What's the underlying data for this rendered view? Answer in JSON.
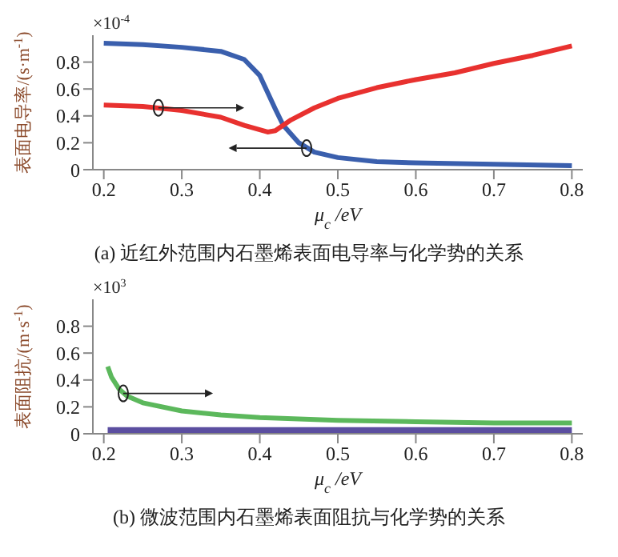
{
  "chart_data": [
    {
      "type": "line",
      "title": "(a) 近红外范围内石墨烯表面电导率与化学势的关系",
      "xlabel": "μ$_{c}$ /eV",
      "ylabel": "表面电导率/(s·m$^{-1}$)",
      "annotations": [
        "×10$^{-4}$"
      ],
      "xlim": [
        0.186,
        0.814
      ],
      "xticks": [
        0.2,
        0.3,
        0.4,
        0.5,
        0.6,
        0.7,
        0.8
      ],
      "ylim": [
        0,
        1
      ],
      "yticks": [
        0,
        0.2,
        0.4,
        0.6,
        0.8
      ],
      "grid": false,
      "legend": false,
      "marker": "none",
      "series": [
        {
          "color": "#3a5fad",
          "x": [
            0.2,
            0.25,
            0.3,
            0.35,
            0.38,
            0.4,
            0.42,
            0.43,
            0.45,
            0.47,
            0.5,
            0.55,
            0.6,
            0.7,
            0.8
          ],
          "values": [
            0.94,
            0.93,
            0.91,
            0.88,
            0.82,
            0.7,
            0.45,
            0.33,
            0.2,
            0.13,
            0.09,
            0.06,
            0.05,
            0.04,
            0.03
          ]
        },
        {
          "color": "#e8312f",
          "x": [
            0.2,
            0.25,
            0.3,
            0.35,
            0.38,
            0.41,
            0.42,
            0.44,
            0.47,
            0.5,
            0.55,
            0.6,
            0.65,
            0.7,
            0.75,
            0.8
          ],
          "values": [
            0.48,
            0.47,
            0.44,
            0.39,
            0.33,
            0.28,
            0.29,
            0.37,
            0.46,
            0.53,
            0.61,
            0.67,
            0.72,
            0.79,
            0.85,
            0.92
          ]
        }
      ]
    },
    {
      "type": "line",
      "title": "(b) 微波范围内石墨烯表面阻抗与化学势的关系",
      "xlabel": "μ$_{c}$ /eV",
      "ylabel": "表面阻抗/(m·s$^{-1}$)",
      "annotations": [
        "×10$^{3}$"
      ],
      "xlim": [
        0.186,
        0.814
      ],
      "xticks": [
        0.2,
        0.3,
        0.4,
        0.5,
        0.6,
        0.7,
        0.8
      ],
      "ylim": [
        0,
        1
      ],
      "yticks": [
        0,
        0.2,
        0.4,
        0.6,
        0.8
      ],
      "grid": false,
      "legend": false,
      "marker": "none",
      "series": [
        {
          "color": "#5cb85c",
          "x": [
            0.205,
            0.21,
            0.22,
            0.23,
            0.25,
            0.3,
            0.35,
            0.4,
            0.5,
            0.6,
            0.7,
            0.8
          ],
          "values": [
            0.5,
            0.42,
            0.33,
            0.28,
            0.23,
            0.17,
            0.14,
            0.12,
            0.1,
            0.09,
            0.08,
            0.08
          ]
        },
        {
          "color": "#5b4ea0",
          "x": [
            0.205,
            0.8
          ],
          "values": [
            0.02,
            0.02
          ]
        }
      ]
    }
  ]
}
